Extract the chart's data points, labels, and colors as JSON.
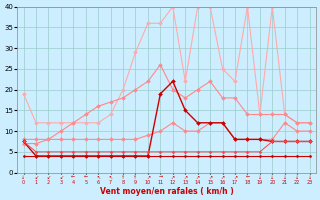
{
  "x": [
    0,
    1,
    2,
    3,
    4,
    5,
    6,
    7,
    8,
    9,
    10,
    11,
    12,
    13,
    14,
    15,
    16,
    17,
    18,
    19,
    20,
    21,
    22,
    23
  ],
  "series": [
    {
      "name": "rafales_max",
      "values": [
        19,
        12,
        12,
        12,
        12,
        12,
        12,
        14,
        20,
        29,
        36,
        36,
        40,
        22,
        40,
        40,
        25,
        22,
        40,
        14,
        40,
        14,
        12,
        12
      ],
      "color": "#ffaaaa",
      "lw": 0.8,
      "marker": "D",
      "ms": 2
    },
    {
      "name": "rafales_mid",
      "values": [
        7,
        7,
        8,
        10,
        12,
        14,
        16,
        17,
        18,
        20,
        22,
        26,
        20,
        18,
        20,
        22,
        18,
        18,
        14,
        14,
        14,
        14,
        12,
        12
      ],
      "color": "#ff8888",
      "lw": 0.8,
      "marker": "D",
      "ms": 2
    },
    {
      "name": "wind_gust_upper",
      "values": [
        8,
        8,
        8,
        8,
        8,
        8,
        8,
        8,
        8,
        8,
        9,
        10,
        12,
        10,
        10,
        12,
        12,
        8,
        8,
        8,
        8,
        12,
        10,
        10
      ],
      "color": "#ff8888",
      "lw": 0.8,
      "marker": "D",
      "ms": 2
    },
    {
      "name": "wind_avg_spike",
      "values": [
        7.5,
        4,
        4,
        4,
        4,
        4,
        4,
        4,
        4,
        4,
        4,
        19,
        22,
        15,
        12,
        12,
        12,
        8,
        8,
        8,
        7.5,
        7.5,
        7.5,
        7.5
      ],
      "color": "#cc0000",
      "lw": 1.0,
      "marker": "D",
      "ms": 2
    },
    {
      "name": "wind_avg_low",
      "values": [
        7.5,
        5,
        5,
        5,
        5,
        5,
        5,
        5,
        5,
        5,
        5,
        5,
        5,
        5,
        5,
        5,
        5,
        5,
        5,
        5,
        7.5,
        7.5,
        7.5,
        7.5
      ],
      "color": "#ff4444",
      "lw": 0.7,
      "marker": "D",
      "ms": 1.5
    },
    {
      "name": "wind_min",
      "values": [
        4,
        4,
        4,
        4,
        4,
        4,
        4,
        4,
        4,
        4,
        4,
        4,
        4,
        4,
        4,
        4,
        4,
        4,
        4,
        4,
        4,
        4,
        4,
        4
      ],
      "color": "#cc0000",
      "lw": 0.8,
      "marker": "D",
      "ms": 1.5
    }
  ],
  "wind_dirs": [
    "↓",
    "↙",
    "↙",
    "↙",
    "←",
    "←",
    "↖",
    "↖",
    "↑",
    "↑",
    "↗",
    "→",
    "↗",
    "↗",
    "↗",
    "↗",
    "↗",
    "↗",
    "←",
    "↓",
    "↓",
    "↓",
    "↓",
    "↓"
  ],
  "background_color": "#cceeff",
  "grid_color": "#99cccc",
  "xlabel": "Vent moyen/en rafales ( km/h )",
  "xlabel_color": "#cc0000",
  "ylim": [
    0,
    40
  ],
  "xlim": [
    -0.5,
    23.5
  ],
  "yticks": [
    0,
    5,
    10,
    15,
    20,
    25,
    30,
    35,
    40
  ],
  "xticks": [
    0,
    1,
    2,
    3,
    4,
    5,
    6,
    7,
    8,
    9,
    10,
    11,
    12,
    13,
    14,
    15,
    16,
    17,
    18,
    19,
    20,
    21,
    22,
    23
  ]
}
